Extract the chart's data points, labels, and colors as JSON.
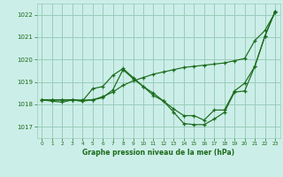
{
  "background_color": "#cceee8",
  "grid_color": "#99ccbb",
  "line_color": "#1a6b1a",
  "title": "Graphe pression niveau de la mer (hPa)",
  "xlim": [
    -0.5,
    23.5
  ],
  "ylim": [
    1016.5,
    1022.5
  ],
  "yticks": [
    1017,
    1018,
    1019,
    1020,
    1021,
    1022
  ],
  "xticks": [
    0,
    1,
    2,
    3,
    4,
    5,
    6,
    7,
    8,
    9,
    10,
    11,
    12,
    13,
    14,
    15,
    16,
    17,
    18,
    19,
    20,
    21,
    22,
    23
  ],
  "line1_x": [
    0,
    1,
    2,
    3,
    4,
    5,
    6,
    7,
    8,
    9,
    10,
    11,
    12,
    13,
    14,
    15,
    16,
    17,
    18,
    19,
    20,
    21,
    22,
    23
  ],
  "line1_y": [
    1018.2,
    1018.2,
    1018.2,
    1018.2,
    1018.2,
    1018.2,
    1018.35,
    1018.55,
    1018.85,
    1019.05,
    1019.2,
    1019.35,
    1019.45,
    1019.55,
    1019.65,
    1019.7,
    1019.75,
    1019.8,
    1019.85,
    1019.95,
    1020.05,
    1020.85,
    1021.3,
    1022.1
  ],
  "line2_x": [
    0,
    1,
    2,
    3,
    4,
    5,
    6,
    7,
    8,
    9,
    10,
    11,
    12,
    13,
    14,
    15,
    16,
    17,
    18,
    19,
    20,
    21,
    22,
    23
  ],
  "line2_y": [
    1018.2,
    1018.15,
    1018.1,
    1018.2,
    1018.15,
    1018.7,
    1018.8,
    1019.3,
    1019.6,
    1019.2,
    1018.8,
    1018.5,
    1018.15,
    1017.65,
    1017.15,
    1017.1,
    1017.1,
    1017.35,
    1017.65,
    1018.55,
    1018.6,
    1019.7,
    1021.05,
    1022.15
  ],
  "line3_x": [
    0,
    1,
    2,
    3,
    4,
    5,
    6,
    7,
    8,
    9,
    10,
    11,
    12,
    13,
    14,
    15,
    16,
    17,
    18,
    19,
    20,
    21,
    22,
    23
  ],
  "line3_y": [
    1018.2,
    1018.2,
    1018.2,
    1018.2,
    1018.15,
    1018.2,
    1018.3,
    1018.65,
    1019.55,
    1019.15,
    1018.8,
    1018.4,
    1018.15,
    1017.8,
    1017.5,
    1017.5,
    1017.3,
    1017.75,
    1017.75,
    1018.6,
    1018.95,
    1019.7,
    1021.05,
    1022.15
  ]
}
